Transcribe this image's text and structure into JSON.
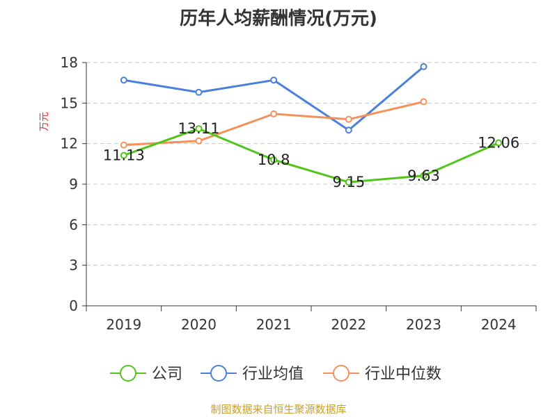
{
  "chart_data": {
    "type": "line",
    "title": "历年人均薪酬情况(万元)",
    "ylabel": "万元",
    "xlabel": "",
    "categories": [
      "2019",
      "2020",
      "2021",
      "2022",
      "2023",
      "2024"
    ],
    "ylim": [
      0,
      18
    ],
    "yticks": [
      0,
      3,
      6,
      9,
      12,
      15,
      18
    ],
    "grid": true,
    "legend_position": "bottom",
    "series": [
      {
        "name": "公司",
        "color": "#52c41a",
        "values": [
          11.13,
          13.11,
          10.8,
          9.15,
          9.63,
          12.06
        ],
        "labels": [
          "11.13",
          "13.11",
          "10.8",
          "9.15",
          "9.63",
          "12.06"
        ]
      },
      {
        "name": "行业均值",
        "color": "#4a7fdc",
        "values": [
          16.7,
          15.8,
          16.7,
          13.0,
          17.7,
          null
        ]
      },
      {
        "name": "行业中位数",
        "color": "#f4915a",
        "values": [
          11.9,
          12.2,
          14.2,
          13.8,
          15.1,
          null
        ]
      }
    ],
    "source": "制图数据来自恒生聚源数据库"
  }
}
